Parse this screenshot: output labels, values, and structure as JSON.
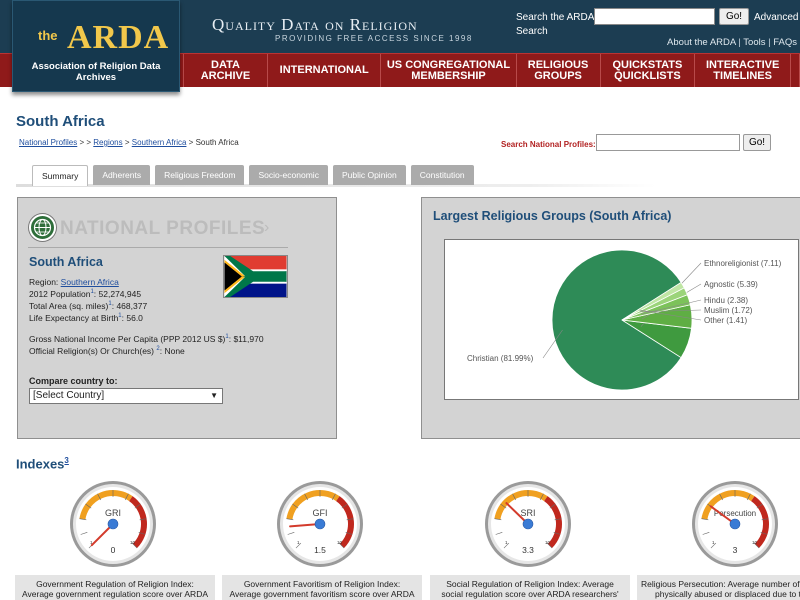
{
  "header": {
    "logo_the": "the",
    "logo_name": "ARDA",
    "logo_subtitle": "Association of Religion Data Archives",
    "tagline_title": "Quality Data on Religion",
    "tagline_sub": "PROVIDING FREE ACCESS SINCE 1998",
    "search_label_1": "Search the ARDA",
    "search_label_2": "Search",
    "search_value": "",
    "search_button": "Go!",
    "advanced_link": "Advanced",
    "top_links": [
      "About the ARDA",
      "Tools",
      "FAQs"
    ]
  },
  "nav": [
    {
      "l1": "DATA",
      "l2": "ARCHIVE"
    },
    {
      "l1": "INTERNATIONAL",
      "l2": ""
    },
    {
      "l1": "US CONGREGATIONAL",
      "l2": "MEMBERSHIP"
    },
    {
      "l1": "RELIGIOUS",
      "l2": "GROUPS"
    },
    {
      "l1": "QUICKSTATS",
      "l2": "QUICKLISTS"
    },
    {
      "l1": "INTERACTIVE",
      "l2": "TIMELINES"
    }
  ],
  "page": {
    "title": "South Africa",
    "breadcrumb": {
      "item1": "National Profiles",
      "sep1": " > > ",
      "item2": "Regions",
      "sep2": " > ",
      "item3": "Southern Africa",
      "sep3": " > ",
      "current": "South Africa"
    },
    "np_search_label": "Search National Profiles:",
    "np_search_value": "",
    "np_search_button": "Go!"
  },
  "tabs": [
    "Summary",
    "Adherents",
    "Religious Freedom",
    "Socio-economic",
    "Public Opinion",
    "Constitution"
  ],
  "profile": {
    "banner": "NATIONAL PROFILES",
    "banner_arrow": "›",
    "country": "South Africa",
    "region_label": "Region: ",
    "region_value": "Southern Africa",
    "population_label": "2012 Population",
    "population_note": "1",
    "population_value": ": 52,274,945",
    "area_label": "Total Area (sq. miles)",
    "area_note": "1",
    "area_value": ": 468,377",
    "life_label": "Life Expectancy at Birth",
    "life_note": "1",
    "life_value": ": 56.0",
    "gni_label": "Gross National Income Per Capita (PPP 2012 US $)",
    "gni_note": "1",
    "gni_value": ": $11,970",
    "official_label": "Official Religion(s) Or Church(es) ",
    "official_note": "2",
    "official_value": ": None",
    "compare_label": "Compare country to:",
    "compare_selected": "[Select Country]"
  },
  "chart_data": {
    "type": "pie",
    "title": "Largest Religious Groups (South Africa)",
    "slices": [
      {
        "label": "Christian",
        "value": 81.99,
        "display": "Christian (81.99%)",
        "color": "#2e8b57"
      },
      {
        "label": "Ethnoreligionist",
        "value": 7.11,
        "display": "Ethnoreligionist (7.11)",
        "color": "#3f9a3f"
      },
      {
        "label": "Agnostic",
        "value": 5.39,
        "display": "Agnostic (5.39)",
        "color": "#5fae44"
      },
      {
        "label": "Hindu",
        "value": 2.38,
        "display": "Hindu (2.38)",
        "color": "#7cc25a"
      },
      {
        "label": "Muslim",
        "value": 1.72,
        "display": "Muslim (1.72)",
        "color": "#9bd47a"
      },
      {
        "label": "Other",
        "value": 1.41,
        "display": "Other (1.41)",
        "color": "#bfe6a4"
      }
    ]
  },
  "indexes": {
    "title": "Indexes",
    "note": "3",
    "items": [
      {
        "abbr": "GRI",
        "value": 0,
        "value_text": "0",
        "desc1": "Government Regulation of Religion Index:",
        "desc2": "Average government regulation score over ARDA"
      },
      {
        "abbr": "GFI",
        "value": 1.5,
        "value_text": "1.5",
        "desc1": "Government Favoritism of Religion Index:",
        "desc2": "Average government favoritism score over ARDA"
      },
      {
        "abbr": "SRI",
        "value": 3.3,
        "value_text": "3.3",
        "desc1": "Social Regulation of Religion Index: Average",
        "desc2": "social regulation score over ARDA researchers'"
      },
      {
        "abbr": "Persecution",
        "value": 3,
        "value_text": "3",
        "desc1": "Religious Persecution: Average number of",
        "desc2": "physically abused or displaced due to t"
      }
    ],
    "gauge_scale_min": "1",
    "gauge_scale_max": "10"
  },
  "colors": {
    "header_bg": "#1c3d52",
    "nav_bg": "#8f1a1a",
    "logo_gold": "#f2c84b",
    "title_blue": "#1f4e79",
    "gauge_orange": "#f0a020",
    "gauge_red": "#c0281e",
    "needle": "#d33b2c"
  }
}
